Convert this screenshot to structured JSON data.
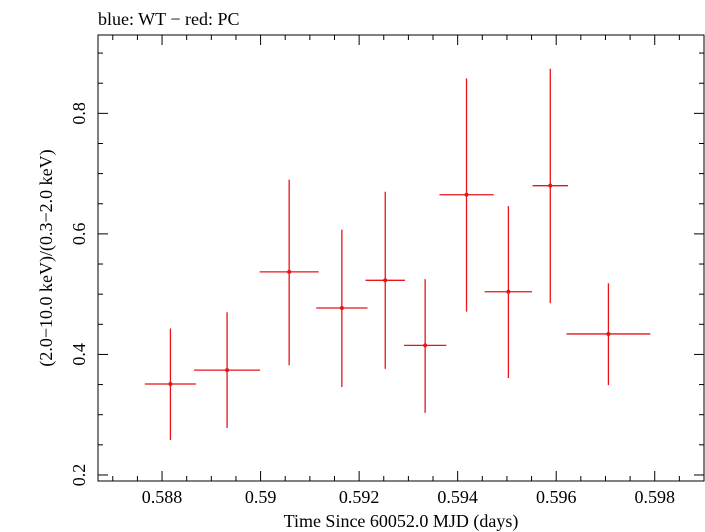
{
  "header": {
    "title": "blue: WT − red: PC"
  },
  "chart_data": {
    "type": "scatter",
    "title": "blue: WT − red: PC",
    "xlabel": "Time Since 60052.0 MJD (days)",
    "ylabel": "(2.0−10.0 keV)/(0.3−2.0 keV)",
    "xlim": [
      0.5867,
      0.599
    ],
    "ylim": [
      0.19,
      0.93
    ],
    "x_ticks": [
      {
        "value": 0.588,
        "label": "0.588"
      },
      {
        "value": 0.59,
        "label": "0.59"
      },
      {
        "value": 0.592,
        "label": "0.592"
      },
      {
        "value": 0.594,
        "label": "0.594"
      },
      {
        "value": 0.596,
        "label": "0.596"
      },
      {
        "value": 0.598,
        "label": "0.598"
      }
    ],
    "y_ticks": [
      {
        "value": 0.2,
        "label": "0.2"
      },
      {
        "value": 0.4,
        "label": "0.4"
      },
      {
        "value": 0.6,
        "label": "0.6"
      },
      {
        "value": 0.8,
        "label": "0.8"
      }
    ],
    "x_minor_step": 0.0005,
    "y_minor_step": 0.05,
    "grid": false,
    "series": [
      {
        "color": "#e8141a",
        "points": [
          {
            "x": 0.58817,
            "xerr": 0.00052,
            "y": 0.351,
            "yerr_low": 0.093,
            "yerr_high": 0.092
          },
          {
            "x": 0.58932,
            "xerr": 0.00067,
            "y": 0.374,
            "yerr_low": 0.096,
            "yerr_high": 0.096
          },
          {
            "x": 0.59058,
            "xerr": 0.0006,
            "y": 0.537,
            "yerr_low": 0.155,
            "yerr_high": 0.153
          },
          {
            "x": 0.59165,
            "xerr": 0.00052,
            "y": 0.477,
            "yerr_low": 0.131,
            "yerr_high": 0.13
          },
          {
            "x": 0.59253,
            "xerr": 0.0004,
            "y": 0.523,
            "yerr_low": 0.147,
            "yerr_high": 0.147
          },
          {
            "x": 0.59334,
            "xerr": 0.00043,
            "y": 0.415,
            "yerr_low": 0.112,
            "yerr_high": 0.11
          },
          {
            "x": 0.59418,
            "xerr": 0.00055,
            "y": 0.665,
            "yerr_low": 0.194,
            "yerr_high": 0.193
          },
          {
            "x": 0.59503,
            "xerr": 0.00048,
            "y": 0.504,
            "yerr_low": 0.143,
            "yerr_high": 0.142
          },
          {
            "x": 0.59588,
            "xerr": 0.00036,
            "y": 0.68,
            "yerr_low": 0.195,
            "yerr_high": 0.194
          },
          {
            "x": 0.59706,
            "xerr": 0.00085,
            "y": 0.434,
            "yerr_low": 0.085,
            "yerr_high": 0.084
          }
        ]
      }
    ]
  }
}
